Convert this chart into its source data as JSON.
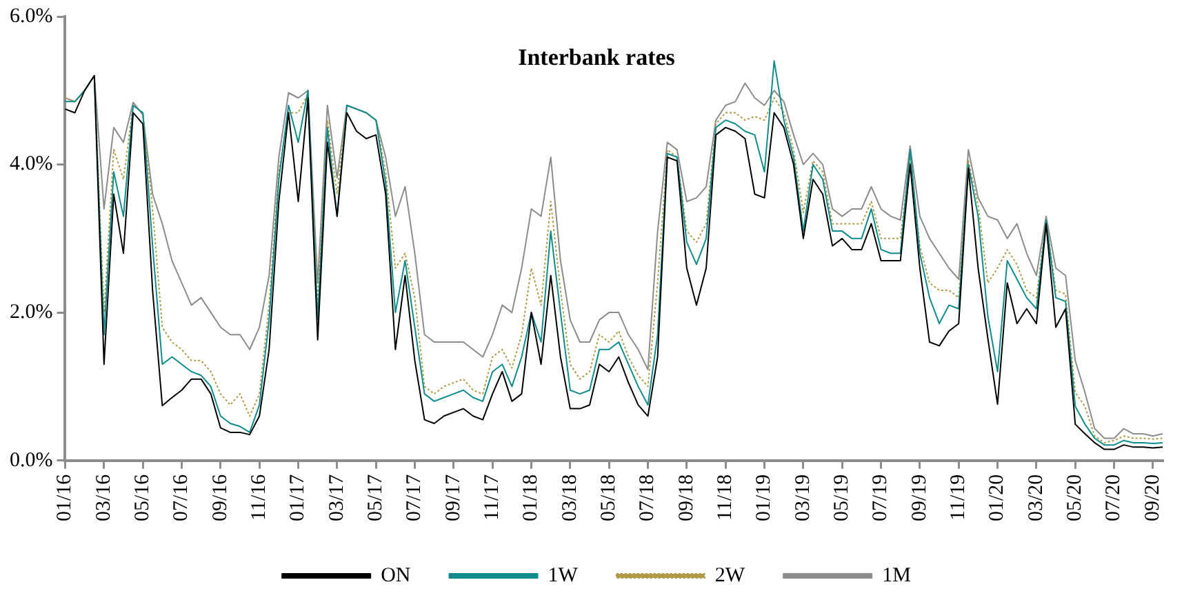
{
  "chart_data": {
    "type": "line",
    "title": "Interbank rates",
    "categories": [
      "01/16",
      null,
      null,
      null,
      "03/16",
      null,
      null,
      null,
      "05/16",
      null,
      null,
      null,
      "07/16",
      null,
      null,
      null,
      "09/16",
      null,
      null,
      null,
      "11/16",
      null,
      null,
      null,
      "01/17",
      null,
      null,
      null,
      "03/17",
      null,
      null,
      null,
      "05/17",
      null,
      null,
      null,
      "07/17",
      null,
      null,
      null,
      "09/17",
      null,
      null,
      null,
      "11/17",
      null,
      null,
      null,
      "01/18",
      null,
      null,
      null,
      "03/18",
      null,
      null,
      null,
      "05/18",
      null,
      null,
      null,
      "07/18",
      null,
      null,
      null,
      "09/18",
      null,
      null,
      null,
      "11/18",
      null,
      null,
      null,
      "01/19",
      null,
      null,
      null,
      "03/19",
      null,
      null,
      null,
      "05/19",
      null,
      null,
      null,
      "07/19",
      null,
      null,
      null,
      "09/19",
      null,
      null,
      null,
      "11/19",
      null,
      null,
      null,
      "01/20",
      null,
      null,
      null,
      "03/20",
      null,
      null,
      null,
      "05/20",
      null,
      null,
      null,
      "07/20",
      null,
      null,
      null,
      "09/20",
      null
    ],
    "ylim": [
      0,
      6
    ],
    "yticks": [
      {
        "value": 0,
        "label": "0.0%"
      },
      {
        "value": 2,
        "label": "2.0%"
      },
      {
        "value": 4,
        "label": "4.0%"
      },
      {
        "value": 6,
        "label": "6.0%"
      }
    ],
    "legend": "bottom",
    "marker": "none",
    "series": [
      {
        "name": "ON",
        "color": "#000000",
        "line_style": "solid",
        "values": [
          4.75,
          4.7,
          5.0,
          5.2,
          1.3,
          3.6,
          2.8,
          4.7,
          4.55,
          2.3,
          0.74,
          0.85,
          0.95,
          1.1,
          1.1,
          0.9,
          0.44,
          0.38,
          0.38,
          0.35,
          0.6,
          1.5,
          3.5,
          4.7,
          3.5,
          4.9,
          1.63,
          4.3,
          3.3,
          4.7,
          4.45,
          4.35,
          4.4,
          3.6,
          1.5,
          2.5,
          1.35,
          0.55,
          0.5,
          0.6,
          0.65,
          0.7,
          0.6,
          0.55,
          0.9,
          1.2,
          0.8,
          0.9,
          2.0,
          1.3,
          2.5,
          1.4,
          0.7,
          0.7,
          0.75,
          1.3,
          1.2,
          1.4,
          1.05,
          0.75,
          0.6,
          1.4,
          4.1,
          4.05,
          2.6,
          2.1,
          2.6,
          4.4,
          4.5,
          4.45,
          4.35,
          3.6,
          3.55,
          4.7,
          4.5,
          4.0,
          3.0,
          3.8,
          3.6,
          2.9,
          3.0,
          2.85,
          2.85,
          3.2,
          2.7,
          2.7,
          2.7,
          4.0,
          2.6,
          1.6,
          1.55,
          1.75,
          1.85,
          3.95,
          2.6,
          1.65,
          0.76,
          2.4,
          1.85,
          2.05,
          1.85,
          3.2,
          1.8,
          2.05,
          0.49,
          0.36,
          0.24,
          0.15,
          0.15,
          0.21,
          0.18,
          0.18,
          0.17,
          0.18
        ]
      },
      {
        "name": "1W",
        "color": "#0e8c8c",
        "line_style": "solid",
        "values": [
          4.85,
          4.85,
          5.0,
          5.2,
          1.7,
          3.9,
          3.3,
          4.8,
          4.7,
          2.9,
          1.3,
          1.4,
          1.3,
          1.2,
          1.15,
          1.0,
          0.6,
          0.5,
          0.46,
          0.38,
          0.75,
          1.9,
          3.8,
          4.8,
          4.3,
          5.0,
          1.9,
          4.5,
          3.3,
          4.8,
          4.75,
          4.7,
          4.6,
          3.75,
          2.0,
          2.7,
          1.8,
          0.9,
          0.8,
          0.85,
          0.9,
          0.95,
          0.85,
          0.8,
          1.2,
          1.3,
          1.0,
          1.4,
          2.0,
          1.6,
          3.1,
          2.0,
          0.95,
          0.9,
          0.95,
          1.5,
          1.5,
          1.6,
          1.3,
          1.0,
          0.75,
          1.7,
          4.15,
          4.1,
          2.95,
          2.65,
          3.0,
          4.5,
          4.6,
          4.55,
          4.45,
          4.4,
          3.9,
          5.4,
          4.6,
          4.1,
          3.1,
          4.0,
          3.8,
          3.1,
          3.1,
          3.0,
          3.0,
          3.4,
          2.85,
          2.8,
          2.8,
          4.2,
          2.8,
          2.2,
          1.85,
          2.1,
          2.05,
          4.0,
          3.3,
          1.95,
          1.2,
          2.7,
          2.45,
          2.2,
          2.05,
          3.25,
          2.2,
          2.15,
          0.73,
          0.49,
          0.3,
          0.21,
          0.21,
          0.27,
          0.24,
          0.24,
          0.23,
          0.24
        ]
      },
      {
        "name": "2W",
        "color": "#b09a48",
        "line_style": "dotted",
        "values": [
          4.9,
          4.85,
          5.0,
          5.2,
          2.0,
          4.2,
          3.8,
          4.8,
          4.7,
          3.4,
          1.8,
          1.6,
          1.5,
          1.35,
          1.35,
          1.2,
          0.9,
          0.75,
          0.9,
          0.6,
          0.9,
          2.1,
          3.9,
          4.7,
          4.7,
          4.95,
          2.1,
          4.6,
          3.6,
          4.8,
          4.75,
          4.7,
          4.6,
          3.9,
          2.6,
          2.8,
          2.2,
          1.0,
          0.9,
          1.0,
          1.05,
          1.1,
          0.95,
          0.9,
          1.4,
          1.5,
          1.25,
          1.7,
          2.6,
          2.1,
          3.5,
          2.3,
          1.3,
          1.1,
          1.2,
          1.7,
          1.6,
          1.75,
          1.4,
          1.15,
          1.0,
          2.4,
          4.2,
          4.1,
          3.1,
          2.95,
          3.2,
          4.55,
          4.7,
          4.7,
          4.6,
          4.65,
          4.6,
          4.9,
          4.7,
          4.2,
          3.35,
          4.05,
          3.9,
          3.2,
          3.2,
          3.2,
          3.2,
          3.5,
          3.0,
          3.0,
          3.0,
          4.1,
          2.9,
          2.4,
          2.3,
          2.3,
          2.2,
          4.05,
          3.45,
          2.4,
          2.6,
          2.85,
          2.65,
          2.3,
          2.2,
          3.25,
          2.3,
          2.25,
          0.92,
          0.73,
          0.33,
          0.24,
          0.27,
          0.33,
          0.3,
          0.3,
          0.29,
          0.3
        ]
      },
      {
        "name": "1M",
        "color": "#8c8c8c",
        "line_style": "solid",
        "values": [
          4.9,
          4.85,
          5.0,
          5.2,
          3.4,
          4.5,
          4.3,
          4.84,
          4.67,
          3.6,
          3.2,
          2.7,
          2.4,
          2.1,
          2.2,
          2.0,
          1.8,
          1.7,
          1.7,
          1.5,
          1.8,
          2.5,
          4.1,
          4.97,
          4.9,
          5.0,
          2.4,
          4.8,
          3.82,
          4.8,
          4.75,
          4.7,
          4.6,
          4.1,
          3.3,
          3.7,
          2.8,
          1.7,
          1.6,
          1.6,
          1.6,
          1.6,
          1.5,
          1.4,
          1.7,
          2.1,
          2.0,
          2.6,
          3.4,
          3.3,
          4.1,
          2.7,
          1.9,
          1.6,
          1.6,
          1.9,
          2.0,
          2.0,
          1.7,
          1.5,
          1.23,
          3.1,
          4.3,
          4.2,
          3.5,
          3.55,
          3.7,
          4.6,
          4.8,
          4.85,
          5.1,
          4.9,
          4.8,
          5.0,
          4.85,
          4.4,
          4.0,
          4.15,
          4.0,
          3.4,
          3.3,
          3.4,
          3.4,
          3.7,
          3.4,
          3.3,
          3.25,
          4.25,
          3.3,
          3.0,
          2.8,
          2.6,
          2.45,
          4.2,
          3.55,
          3.3,
          3.25,
          3.0,
          3.2,
          2.8,
          2.5,
          3.3,
          2.6,
          2.5,
          1.35,
          0.92,
          0.43,
          0.3,
          0.3,
          0.43,
          0.36,
          0.36,
          0.33,
          0.36
        ]
      }
    ]
  }
}
